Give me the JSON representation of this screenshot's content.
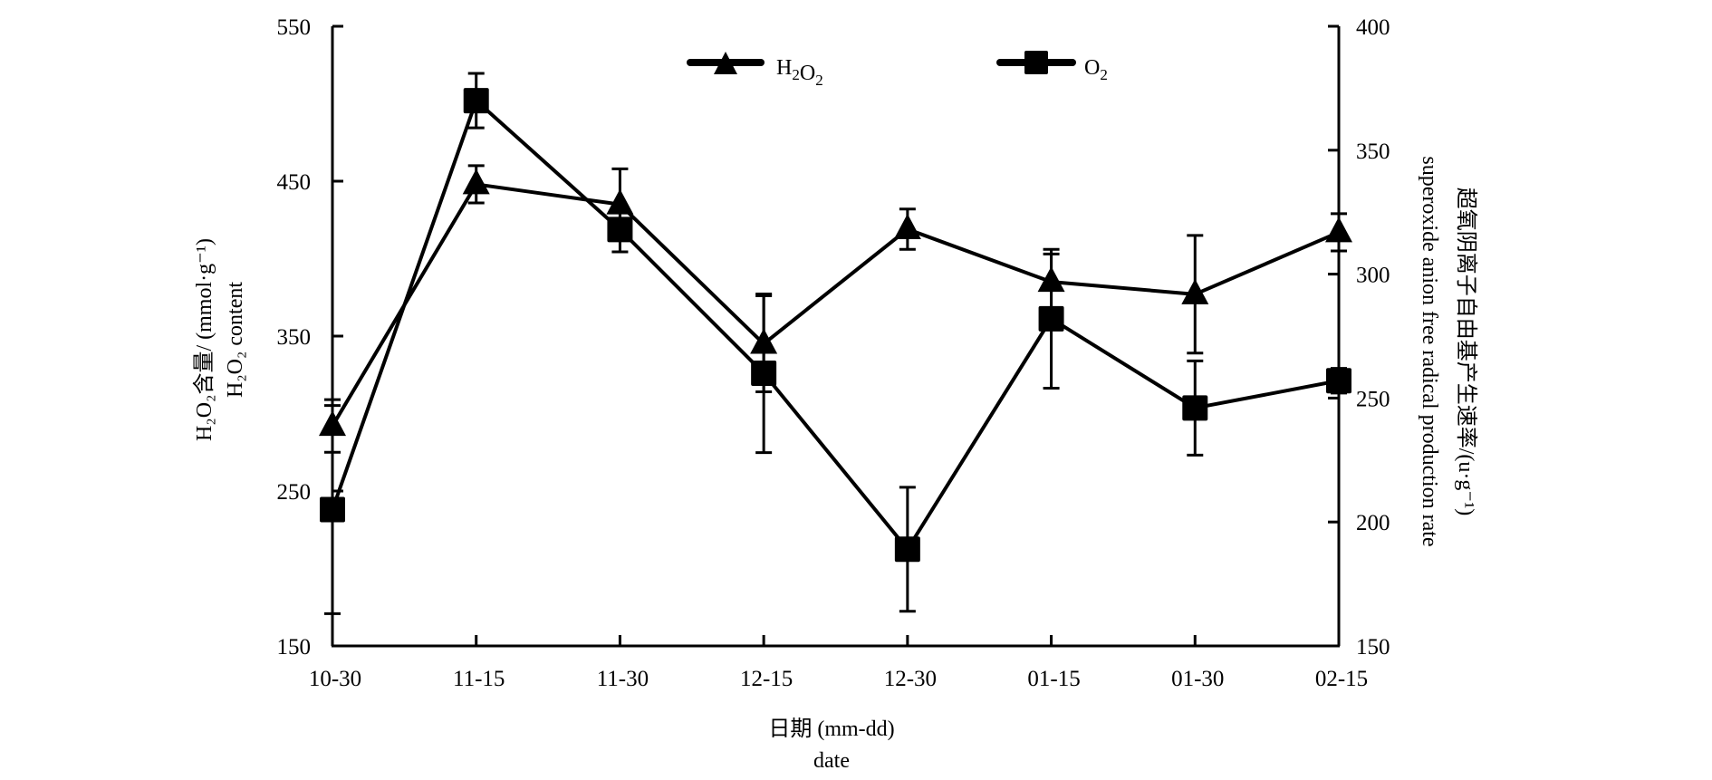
{
  "chart_data": {
    "type": "line",
    "title": "",
    "categories": [
      "10-30",
      "11-15",
      "11-30",
      "12-15",
      "12-30",
      "01-15",
      "01-30",
      "02-15"
    ],
    "xlabel": {
      "line1": "日期 (mm-dd)",
      "line2": "date"
    },
    "ylabel_left": {
      "line1": "H₂O₂含量/ (mmol·g⁻¹)",
      "line2": "H₂O₂  content"
    },
    "ylabel_right": {
      "line1": "超氧阴离子自由基产生速率/(u·g⁻¹)",
      "line2": "superoxide  anion  free radical  production  rate"
    },
    "ylim_left": [
      150,
      550
    ],
    "yticks_left": [
      "150",
      "250",
      "350",
      "450",
      "550"
    ],
    "ylim_right": [
      150,
      400
    ],
    "yticks_right": [
      "150",
      "200",
      "250",
      "300",
      "350",
      "400"
    ],
    "grid": false,
    "legend_position": "top-center",
    "series": [
      {
        "name": "H₂O₂",
        "axis": "left",
        "marker": "triangle",
        "values": [
          292,
          448,
          435,
          345,
          419,
          385,
          377,
          417
        ],
        "errors": [
          17,
          12,
          23,
          31,
          13,
          18,
          38,
          12
        ]
      },
      {
        "name": "O₂",
        "axis": "right",
        "marker": "square",
        "values": [
          205,
          370,
          318,
          260,
          189,
          282,
          246,
          257
        ],
        "errors": [
          42,
          11,
          9,
          32,
          25,
          28,
          19,
          5
        ]
      }
    ],
    "colors": {
      "line": "#000000",
      "marker": "#000000"
    }
  }
}
